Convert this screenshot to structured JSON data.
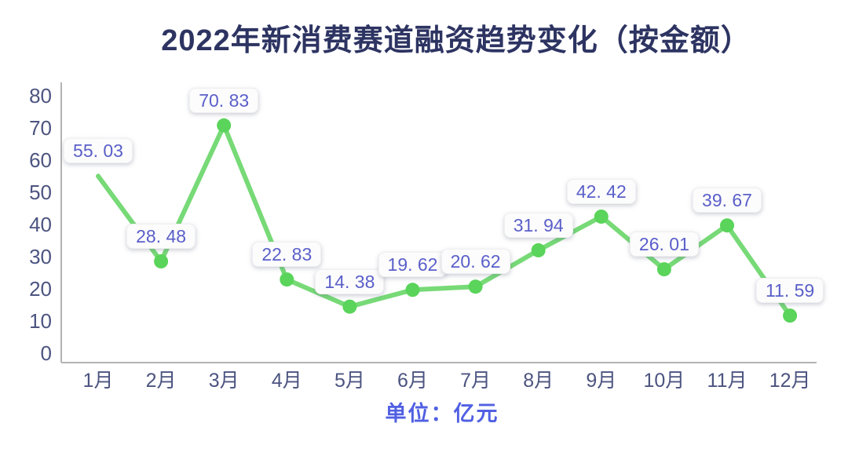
{
  "chart": {
    "title": "2022年新消费赛道融资趋势变化（按金额）",
    "unit_label": "单位：亿元"
  },
  "chart_data": {
    "type": "line",
    "title": "2022年新消费赛道融资趋势变化（按金额）",
    "categories": [
      "1月",
      "2月",
      "3月",
      "4月",
      "5月",
      "6月",
      "7月",
      "8月",
      "9月",
      "10月",
      "11月",
      "12月"
    ],
    "values": [
      55.03,
      28.48,
      70.83,
      22.83,
      14.38,
      19.62,
      20.62,
      31.94,
      42.42,
      26.01,
      39.67,
      11.59
    ],
    "labels": [
      "55. 03",
      "28. 48",
      "70. 83",
      "22. 83",
      "14. 38",
      "19. 62",
      "20. 62",
      "31. 94",
      "42. 42",
      "26. 01",
      "39. 67",
      "11. 59"
    ],
    "unit": "单位：亿元",
    "xlabel": "",
    "ylabel": "",
    "y_ticks": [
      0,
      10,
      20,
      30,
      40,
      50,
      60,
      70,
      80
    ],
    "ylim": [
      0,
      80
    ],
    "grid": false,
    "legend": false,
    "data_labels": true,
    "colors": {
      "line": "#77da77",
      "marker": "#5ad45a",
      "label_text": "#5a5fc9",
      "label_bg": "#fcfcfc",
      "axis_text": "#4c5480",
      "title_text": "#2d3462",
      "unit_text": "#5160e2",
      "axis_line": "#b3b3b3",
      "background": "#ffffff"
    }
  }
}
